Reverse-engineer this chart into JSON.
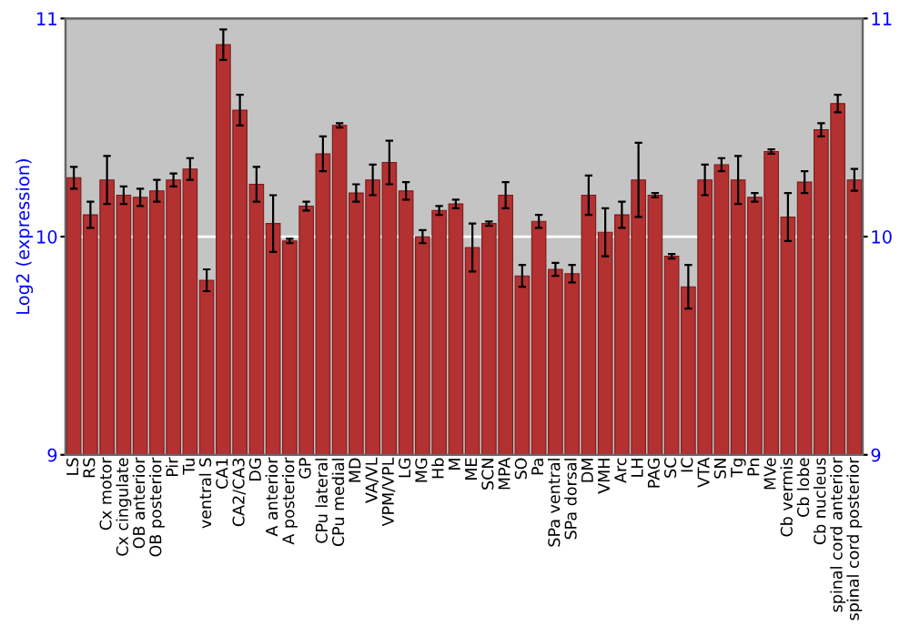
{
  "chart_data": {
    "type": "bar",
    "ylabel": "Log2 (expression)",
    "categories": [
      "LS",
      "RS",
      "Cx motor",
      "Cx cingulate",
      "OB anterior",
      "OB posterior",
      "Pir",
      "Tu",
      "ventral S",
      "CA1",
      "CA2/CA3",
      "DG",
      "A anterior",
      "A posterior",
      "GP",
      "CPu lateral",
      "CPu medial",
      "MD",
      "VA/VL",
      "VPM/VPL",
      "LG",
      "MG",
      "Hb",
      "M",
      "ME",
      "SCN",
      "MPA",
      "SO",
      "Pa",
      "SPa ventral",
      "SPa dorsal",
      "DM",
      "VMH",
      "Arc",
      "LH",
      "PAG",
      "SC",
      "IC",
      "VTA",
      "SN",
      "Tg",
      "Pn",
      "MVe",
      "Cb vermis",
      "Cb lobe",
      "Cb nucleus",
      "spinal cord anterior",
      "spinal cord posterior"
    ],
    "values": [
      10.27,
      10.1,
      10.26,
      10.19,
      10.18,
      10.21,
      10.26,
      10.31,
      9.8,
      10.88,
      10.58,
      10.24,
      10.06,
      9.98,
      10.14,
      10.38,
      10.51,
      10.2,
      10.26,
      10.34,
      10.21,
      10.0,
      10.12,
      10.15,
      9.95,
      10.06,
      10.19,
      9.82,
      10.07,
      9.85,
      9.83,
      10.19,
      10.02,
      10.1,
      10.26,
      10.19,
      9.91,
      9.77,
      10.26,
      10.33,
      10.26,
      10.18,
      10.39,
      10.09,
      10.25,
      10.49,
      10.61,
      10.26
    ],
    "errors": [
      0.05,
      0.06,
      0.11,
      0.04,
      0.04,
      0.05,
      0.03,
      0.05,
      0.05,
      0.07,
      0.07,
      0.08,
      0.13,
      0.01,
      0.02,
      0.08,
      0.01,
      0.04,
      0.07,
      0.1,
      0.04,
      0.03,
      0.02,
      0.02,
      0.11,
      0.01,
      0.06,
      0.05,
      0.03,
      0.03,
      0.04,
      0.09,
      0.11,
      0.06,
      0.17,
      0.01,
      0.01,
      0.1,
      0.07,
      0.03,
      0.11,
      0.02,
      0.01,
      0.11,
      0.05,
      0.03,
      0.04,
      0.05
    ],
    "color": "#b33131",
    "ylim": [
      9,
      11
    ],
    "yticks": [
      9,
      10,
      11
    ],
    "y2lim": [
      9,
      11
    ],
    "y2ticks": [
      9,
      10,
      11
    ],
    "grid": "y"
  }
}
